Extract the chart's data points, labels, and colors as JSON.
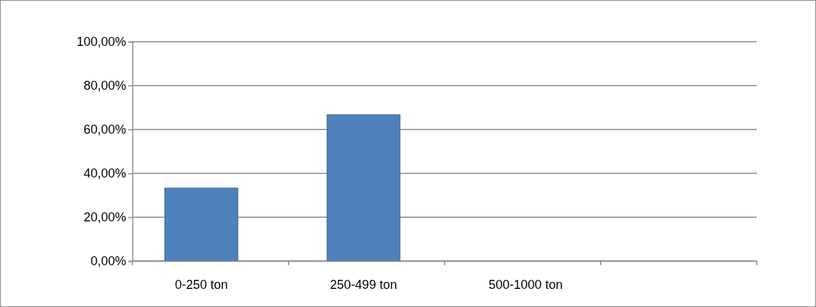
{
  "chart_data": {
    "type": "bar",
    "categories": [
      "0-250 ton",
      "250-499 ton",
      "500-1000 ton",
      null
    ],
    "values": [
      33.3,
      66.7,
      0,
      null
    ],
    "color": "#4f81bd",
    "ylim": [
      0,
      100
    ],
    "yticks": [
      {
        "value": 0,
        "label": "0,00%"
      },
      {
        "value": 20,
        "label": "20,00%"
      },
      {
        "value": 40,
        "label": "40,00%"
      },
      {
        "value": 60,
        "label": "60,00%"
      },
      {
        "value": 80,
        "label": "80,00%"
      },
      {
        "value": 100,
        "label": "100,00%"
      }
    ],
    "grid": "y"
  }
}
